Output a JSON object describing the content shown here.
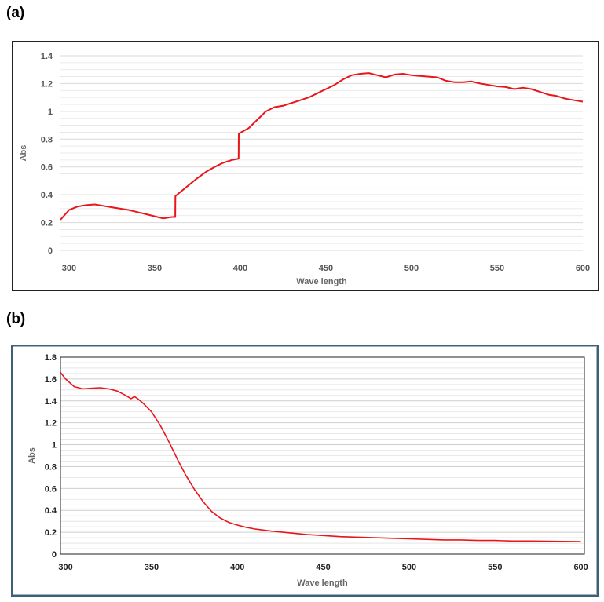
{
  "panels": {
    "a": {
      "label": "(a)"
    },
    "b": {
      "label": "(b)"
    }
  },
  "chart_data": [
    {
      "type": "line",
      "panel": "(a)",
      "title": "",
      "xlabel": "Wave length",
      "ylabel": "Abs",
      "xlim": [
        295,
        600
      ],
      "ylim": [
        0,
        1.4
      ],
      "xticks": [
        300,
        350,
        400,
        450,
        500,
        550,
        600
      ],
      "yticks": [
        "0",
        "0.2",
        "0.4",
        "0.6",
        "0.8",
        "1",
        "1.2",
        "1.4"
      ],
      "grid": "horizontal-minor",
      "line_color": "#e8161b",
      "series": [
        {
          "x": [
            295,
            300,
            305,
            310,
            315,
            320,
            325,
            330,
            335,
            340,
            345,
            350,
            355,
            360,
            362,
            362.1,
            365,
            370,
            375,
            380,
            385,
            390,
            395,
            399,
            399.1,
            405,
            410,
            415,
            420,
            425,
            430,
            435,
            440,
            445,
            450,
            455,
            460,
            465,
            470,
            475,
            480,
            485,
            490,
            495,
            500,
            505,
            510,
            515,
            520,
            525,
            530,
            535,
            540,
            545,
            550,
            555,
            560,
            565,
            570,
            575,
            580,
            585,
            590,
            595,
            600
          ],
          "y": [
            0.22,
            0.29,
            0.315,
            0.325,
            0.33,
            0.32,
            0.31,
            0.3,
            0.29,
            0.275,
            0.26,
            0.245,
            0.23,
            0.24,
            0.24,
            0.39,
            0.42,
            0.47,
            0.52,
            0.565,
            0.6,
            0.63,
            0.65,
            0.66,
            0.84,
            0.88,
            0.94,
            1.0,
            1.03,
            1.04,
            1.06,
            1.08,
            1.1,
            1.13,
            1.16,
            1.19,
            1.23,
            1.26,
            1.27,
            1.275,
            1.26,
            1.245,
            1.265,
            1.27,
            1.26,
            1.255,
            1.25,
            1.245,
            1.22,
            1.21,
            1.21,
            1.215,
            1.2,
            1.19,
            1.18,
            1.175,
            1.16,
            1.17,
            1.16,
            1.14,
            1.12,
            1.11,
            1.09,
            1.08,
            1.07
          ]
        }
      ]
    },
    {
      "type": "line",
      "panel": "(b)",
      "title": "",
      "xlabel": "Wave length",
      "ylabel": "Abs",
      "xlim": [
        297,
        602
      ],
      "ylim": [
        0,
        1.8
      ],
      "xticks": [
        300,
        350,
        400,
        450,
        500,
        550,
        600
      ],
      "yticks": [
        "0",
        "0.2",
        "0.4",
        "0.6",
        "0.8",
        "1",
        "1.2",
        "1.4",
        "1.6",
        "1.8"
      ],
      "grid": "horizontal-minor",
      "line_color": "#e8161b",
      "series": [
        {
          "x": [
            297,
            300,
            305,
            310,
            315,
            320,
            325,
            330,
            335,
            338,
            340,
            342,
            345,
            350,
            355,
            360,
            365,
            370,
            375,
            380,
            385,
            390,
            395,
            400,
            405,
            410,
            420,
            430,
            440,
            450,
            460,
            470,
            480,
            490,
            500,
            510,
            520,
            530,
            540,
            550,
            560,
            570,
            580,
            590,
            600
          ],
          "y": [
            1.66,
            1.6,
            1.53,
            1.51,
            1.515,
            1.52,
            1.51,
            1.49,
            1.45,
            1.42,
            1.44,
            1.42,
            1.38,
            1.3,
            1.18,
            1.03,
            0.87,
            0.72,
            0.59,
            0.48,
            0.39,
            0.33,
            0.29,
            0.265,
            0.245,
            0.23,
            0.21,
            0.195,
            0.18,
            0.17,
            0.16,
            0.155,
            0.15,
            0.145,
            0.14,
            0.135,
            0.13,
            0.13,
            0.125,
            0.125,
            0.12,
            0.12,
            0.118,
            0.116,
            0.115
          ]
        }
      ]
    }
  ]
}
